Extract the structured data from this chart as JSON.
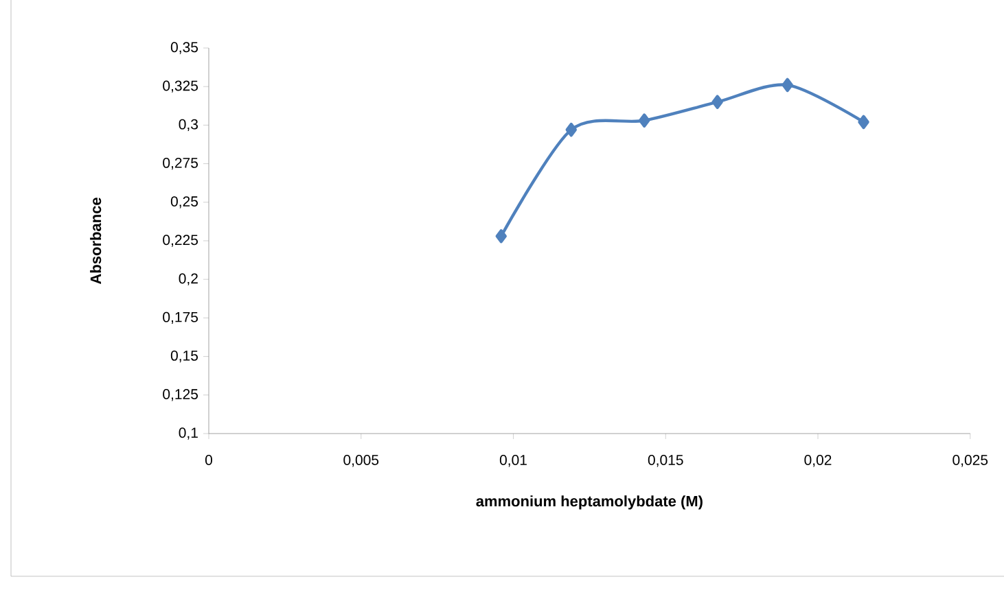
{
  "chart_data": {
    "type": "line",
    "xlabel": "ammonium heptamolybdate (M)",
    "ylabel": "Absorbance",
    "series": [
      {
        "color": "#4f81bd",
        "x": [
          0.0096,
          0.0119,
          0.0143,
          0.0167,
          0.019,
          0.0215
        ],
        "values": [
          0.228,
          0.297,
          0.303,
          0.315,
          0.326,
          0.302
        ]
      }
    ],
    "xlim": [
      0,
      0.025
    ],
    "xticks": [
      {
        "value": 0,
        "label": "0"
      },
      {
        "value": 0.005,
        "label": "0,005"
      },
      {
        "value": 0.01,
        "label": "0,01"
      },
      {
        "value": 0.015,
        "label": "0,015"
      },
      {
        "value": 0.02,
        "label": "0,02"
      },
      {
        "value": 0.025,
        "label": "0,025"
      }
    ],
    "ylim": [
      0.1,
      0.35
    ],
    "yticks": [
      {
        "value": 0.1,
        "label": "0,1"
      },
      {
        "value": 0.125,
        "label": "0,125"
      },
      {
        "value": 0.15,
        "label": "0,15"
      },
      {
        "value": 0.175,
        "label": "0,175"
      },
      {
        "value": 0.2,
        "label": "0,2"
      },
      {
        "value": 0.225,
        "label": "0,225"
      },
      {
        "value": 0.25,
        "label": "0,25"
      },
      {
        "value": 0.275,
        "label": "0,275"
      },
      {
        "value": 0.3,
        "label": "0,3"
      },
      {
        "value": 0.325,
        "label": "0,325"
      },
      {
        "value": 0.35,
        "label": "0,35"
      }
    ],
    "grid": false,
    "marker": "diamond",
    "line_style": "solid"
  }
}
